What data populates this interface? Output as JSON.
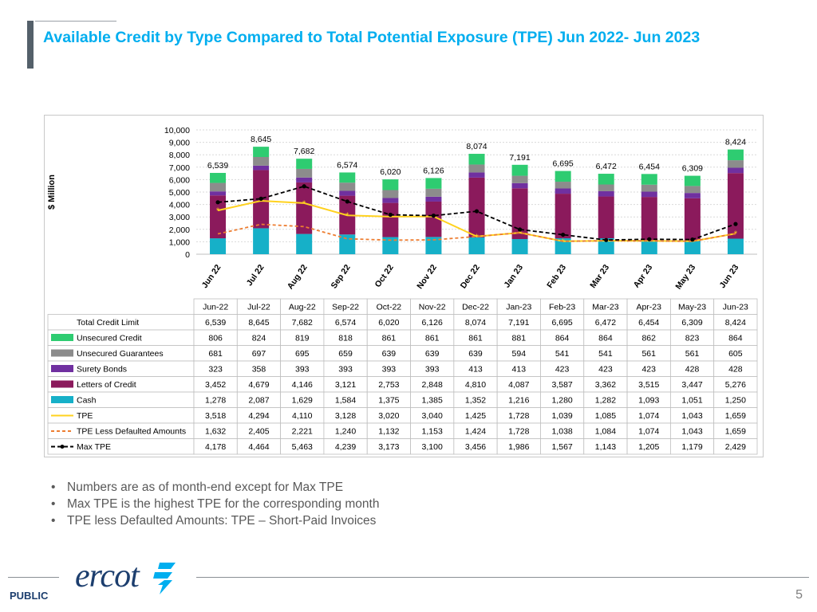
{
  "slide": {
    "title": "Available Credit by Type Compared to Total Potential Exposure (TPE) Jun 2022- Jun 2023",
    "bullets": [
      "Numbers are as of month-end except for Max TPE",
      "Max TPE is the highest TPE for the corresponding month",
      "TPE less Defaulted Amounts: TPE – Short-Paid Invoices"
    ],
    "footer": {
      "label": "PUBLIC",
      "page": "5",
      "logo_text": "ercot"
    }
  },
  "chart_data": {
    "type": "bar",
    "stacked": true,
    "ylabel": "$ Million",
    "ylim": [
      0,
      10000
    ],
    "ytick_labels": [
      "0",
      "1,000",
      "2,000",
      "3,000",
      "4,000",
      "5,000",
      "6,000",
      "7,000",
      "8,000",
      "9,000",
      "10,000"
    ],
    "categories": [
      "Jun 22",
      "Jul 22",
      "Aug 22",
      "Sep 22",
      "Oct 22",
      "Nov 22",
      "Dec 22",
      "Jan 23",
      "Feb 23",
      "Mar 23",
      "Apr 23",
      "May 23",
      "Jun 23"
    ],
    "table_headers": [
      "Jun-22",
      "Jul-22",
      "Aug-22",
      "Sep-22",
      "Oct-22",
      "Nov-22",
      "Dec-22",
      "Jan-23",
      "Feb-23",
      "Mar-23",
      "Apr-23",
      "May-23",
      "Jun-23"
    ],
    "totals": {
      "name": "Total Credit Limit",
      "values": [
        6539,
        8645,
        7682,
        6574,
        6020,
        6126,
        8074,
        7191,
        6695,
        6472,
        6454,
        6309,
        8424
      ],
      "labels": [
        "6,539",
        "8,645",
        "7,682",
        "6,574",
        "6,020",
        "6,126",
        "8,074",
        "7,191",
        "6,695",
        "6,472",
        "6,454",
        "6,309",
        "8,424"
      ]
    },
    "series": [
      {
        "name": "Unsecured Credit",
        "kind": "bar",
        "color": "#2ecc71",
        "values": [
          806,
          824,
          819,
          818,
          861,
          861,
          861,
          881,
          864,
          864,
          862,
          823,
          864
        ],
        "labels": [
          "806",
          "824",
          "819",
          "818",
          "861",
          "861",
          "861",
          "881",
          "864",
          "864",
          "862",
          "823",
          "864"
        ]
      },
      {
        "name": "Unsecured Guarantees",
        "kind": "bar",
        "color": "#8c8c8c",
        "values": [
          681,
          697,
          695,
          659,
          639,
          639,
          639,
          594,
          541,
          541,
          561,
          561,
          605
        ],
        "labels": [
          "681",
          "697",
          "695",
          "659",
          "639",
          "639",
          "639",
          "594",
          "541",
          "541",
          "561",
          "561",
          "605"
        ]
      },
      {
        "name": "Surety Bonds",
        "kind": "bar",
        "color": "#7030a0",
        "values": [
          323,
          358,
          393,
          393,
          393,
          393,
          413,
          413,
          423,
          423,
          423,
          428,
          428
        ],
        "labels": [
          "323",
          "358",
          "393",
          "393",
          "393",
          "393",
          "413",
          "413",
          "423",
          "423",
          "423",
          "428",
          "428"
        ]
      },
      {
        "name": "Letters of Credit",
        "kind": "bar",
        "color": "#8b1a5c",
        "values": [
          3452,
          4679,
          4146,
          3121,
          2753,
          2848,
          4810,
          4087,
          3587,
          3362,
          3515,
          3447,
          5276
        ],
        "labels": [
          "3,452",
          "4,679",
          "4,146",
          "3,121",
          "2,753",
          "2,848",
          "4,810",
          "4,087",
          "3,587",
          "3,362",
          "3,515",
          "3,447",
          "5,276"
        ]
      },
      {
        "name": "Cash",
        "kind": "bar",
        "color": "#16b0c8",
        "values": [
          1278,
          2087,
          1629,
          1584,
          1375,
          1385,
          1352,
          1216,
          1280,
          1282,
          1093,
          1051,
          1250
        ],
        "labels": [
          "1,278",
          "2,087",
          "1,629",
          "1,584",
          "1,375",
          "1,385",
          "1,352",
          "1,216",
          "1,280",
          "1,282",
          "1,093",
          "1,051",
          "1,250"
        ]
      },
      {
        "name": "TPE",
        "kind": "line",
        "color": "#ffd21f",
        "values": [
          3518,
          4294,
          4110,
          3128,
          3020,
          3040,
          1425,
          1728,
          1039,
          1085,
          1074,
          1043,
          1659
        ],
        "labels": [
          "3,518",
          "4,294",
          "4,110",
          "3,128",
          "3,020",
          "3,040",
          "1,425",
          "1,728",
          "1,039",
          "1,085",
          "1,074",
          "1,043",
          "1,659"
        ]
      },
      {
        "name": "TPE Less Defaulted Amounts",
        "kind": "line",
        "color": "#ed7d31",
        "values": [
          1632,
          2405,
          2221,
          1240,
          1132,
          1153,
          1424,
          1728,
          1038,
          1084,
          1074,
          1043,
          1659
        ],
        "labels": [
          "1,632",
          "2,405",
          "2,221",
          "1,240",
          "1,132",
          "1,153",
          "1,424",
          "1,728",
          "1,038",
          "1,084",
          "1,074",
          "1,043",
          "1,659"
        ]
      },
      {
        "name": "Max TPE",
        "kind": "line",
        "color": "#000000",
        "values": [
          4178,
          4464,
          5463,
          4239,
          3173,
          3100,
          3456,
          1986,
          1567,
          1143,
          1205,
          1179,
          2429
        ],
        "labels": [
          "4,178",
          "4,464",
          "5,463",
          "4,239",
          "3,173",
          "3,100",
          "3,456",
          "1,986",
          "1,567",
          "1,143",
          "1,205",
          "1,179",
          "2,429"
        ]
      }
    ]
  }
}
